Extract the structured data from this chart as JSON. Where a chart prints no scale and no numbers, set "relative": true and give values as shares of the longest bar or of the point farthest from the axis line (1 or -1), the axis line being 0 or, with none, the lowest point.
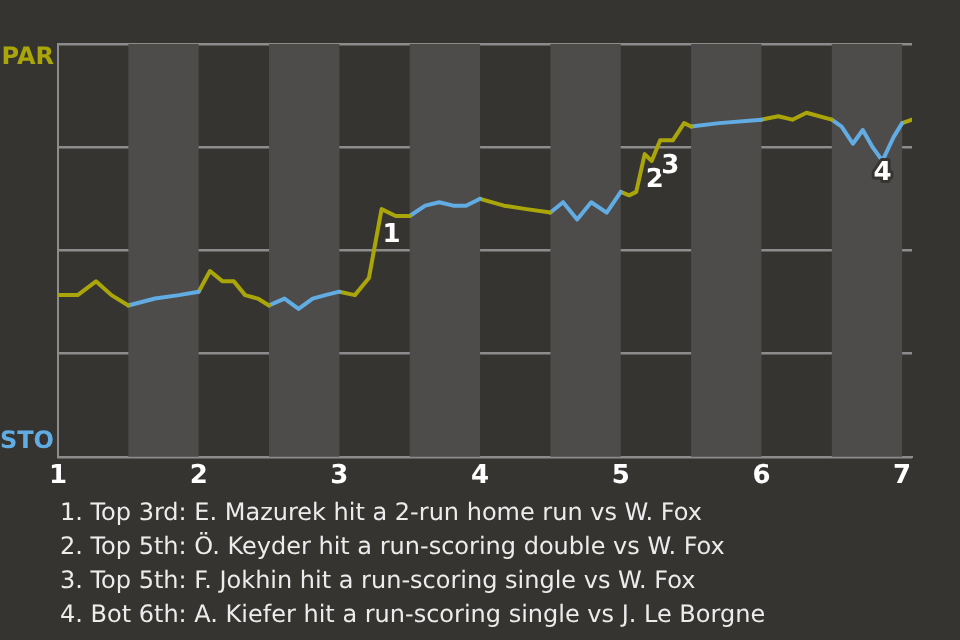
{
  "chart_data": {
    "type": "line",
    "relative": true,
    "series": [
      {
        "color": "#aaa60a",
        "x": [
          1,
          1.14,
          1.27,
          1.38,
          1.5
        ],
        "values": [
          0.47,
          0.47,
          0.51,
          0.47,
          0.44
        ]
      },
      {
        "color": "#62ace4",
        "x": [
          1.5,
          1.69,
          1.86,
          2
        ],
        "values": [
          0.44,
          0.46,
          0.47,
          0.48
        ]
      },
      {
        "color": "#aaa60a",
        "x": [
          2,
          2.08,
          2.17,
          2.25,
          2.33,
          2.42,
          2.5
        ],
        "values": [
          0.48,
          0.54,
          0.51,
          0.51,
          0.47,
          0.46,
          0.44
        ]
      },
      {
        "color": "#62ace4",
        "x": [
          2.5,
          2.61,
          2.71,
          2.81,
          2.9,
          3
        ],
        "values": [
          0.44,
          0.46,
          0.43,
          0.46,
          0.47,
          0.48
        ]
      },
      {
        "color": "#aaa60a",
        "x": [
          3,
          3.11,
          3.21,
          3.3,
          3.4,
          3.5
        ],
        "values": [
          0.48,
          0.47,
          0.52,
          0.72,
          0.7,
          0.7
        ]
      },
      {
        "color": "#62ace4",
        "x": [
          3.5,
          3.61,
          3.71,
          3.81,
          3.9,
          4
        ],
        "values": [
          0.7,
          0.73,
          0.74,
          0.73,
          0.73,
          0.75
        ]
      },
      {
        "color": "#aaa60a",
        "x": [
          4,
          4.17,
          4.33,
          4.5
        ],
        "values": [
          0.75,
          0.73,
          0.72,
          0.71
        ]
      },
      {
        "color": "#62ace4",
        "x": [
          4.5,
          4.59,
          4.69,
          4.79,
          4.9,
          5
        ],
        "values": [
          0.71,
          0.74,
          0.69,
          0.74,
          0.71,
          0.77
        ]
      },
      {
        "color": "#aaa60a",
        "x": [
          5,
          5.06,
          5.11,
          5.17,
          5.22,
          5.28,
          5.37,
          5.45,
          5.5
        ],
        "values": [
          0.77,
          0.76,
          0.77,
          0.88,
          0.86,
          0.92,
          0.92,
          0.97,
          0.96
        ]
      },
      {
        "color": "#62ace4",
        "x": [
          5.5,
          5.7,
          6
        ],
        "values": [
          0.96,
          0.97,
          0.98
        ]
      },
      {
        "color": "#aaa60a",
        "x": [
          6,
          6.12,
          6.22,
          6.32,
          6.5
        ],
        "values": [
          0.98,
          0.99,
          0.98,
          1,
          0.98
        ]
      },
      {
        "color": "#62ace4",
        "x": [
          6.5,
          6.57,
          6.65,
          6.72,
          6.79,
          6.86,
          6.94,
          7
        ],
        "values": [
          0.98,
          0.96,
          0.91,
          0.95,
          0.9,
          0.86,
          0.93,
          0.97
        ]
      },
      {
        "color": "#aaa60a",
        "x": [
          7,
          7.07
        ],
        "values": [
          0.97,
          0.98
        ]
      }
    ],
    "xlim": [
      1,
      7.07
    ],
    "xticks": [
      1,
      2,
      3,
      4,
      5,
      6,
      7
    ],
    "grid": "y",
    "marker": "none",
    "line_style": "solid",
    "bands": [
      {
        "axis": "x",
        "from": 1.5,
        "to": 2,
        "color": "#4e4c4a"
      },
      {
        "axis": "x",
        "from": 2.5,
        "to": 3,
        "color": "#4e4c4a"
      },
      {
        "axis": "x",
        "from": 3.5,
        "to": 4,
        "color": "#4e4c4a"
      },
      {
        "axis": "x",
        "from": 4.5,
        "to": 5,
        "color": "#4e4c4a"
      },
      {
        "axis": "x",
        "from": 5.5,
        "to": 6,
        "color": "#4e4c4a"
      },
      {
        "axis": "x",
        "from": 6.5,
        "to": 7,
        "color": "#4e4c4a"
      }
    ],
    "annotations": [
      "PAR",
      "STO",
      {
        "text": "1",
        "x": 3.3,
        "y": 0.72
      },
      {
        "text": "2",
        "x": 5.17,
        "y": 0.88
      },
      {
        "text": "3",
        "x": 5.28,
        "y": 0.92
      },
      {
        "text": "4",
        "x": 6.79,
        "y": 0.9
      },
      "1. Top 3rd: E. Mazurek hit a 2-run home run vs W. Fox",
      "2. Top 5th: Ö. Keyder hit a run-scoring double vs W. Fox",
      "3. Top 5th: F. Jokhin hit a run-scoring single vs W. Fox",
      "4. Bot 6th: A. Kiefer hit a run-scoring single vs J. Le Borgne"
    ]
  }
}
